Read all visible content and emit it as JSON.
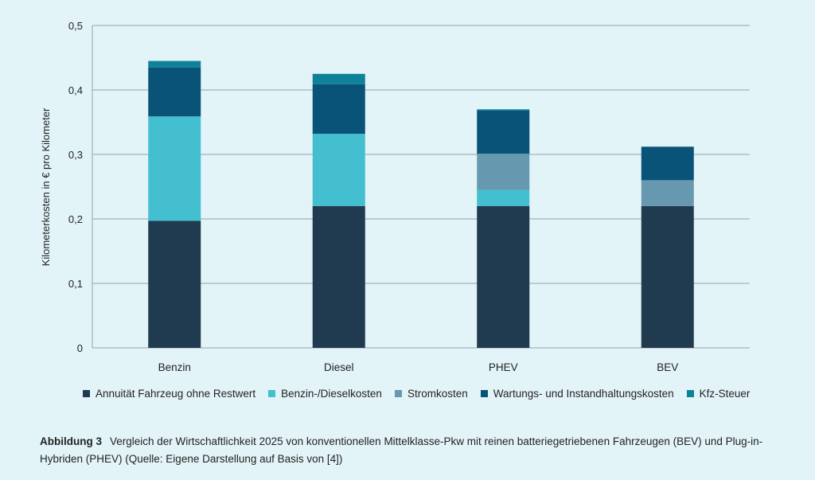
{
  "chart_data": {
    "type": "bar",
    "stacked": true,
    "categories": [
      "Benzin",
      "Diesel",
      "PHEV",
      "BEV"
    ],
    "series": [
      {
        "name": "Annuität Fahrzeug ohne Restwert",
        "color": "#203a4f",
        "values": [
          0.197,
          0.22,
          0.22,
          0.22
        ]
      },
      {
        "name": "Benzin-/Dieselkosten",
        "color": "#44bfcf",
        "values": [
          0.162,
          0.112,
          0.025,
          0
        ]
      },
      {
        "name": "Stromkosten",
        "color": "#6699b0",
        "values": [
          0,
          0,
          0.056,
          0.04
        ]
      },
      {
        "name": "Wartungs- und Instandhaltungskosten",
        "color": "#0a5378",
        "values": [
          0.076,
          0.077,
          0.067,
          0.052
        ]
      },
      {
        "name": "Kfz-Steuer",
        "color": "#0e8299",
        "values": [
          0.01,
          0.016,
          0.002,
          0
        ]
      }
    ],
    "ylabel": "Kilometerkosten in € pro Kilometer",
    "xlabel": "",
    "ylim": [
      0,
      0.5
    ],
    "yticks": [
      "0",
      "0,1",
      "0,2",
      "0,3",
      "0,4",
      "0,5"
    ],
    "grid": true,
    "legend_position": "bottom"
  },
  "caption": {
    "label": "Abbildung 3",
    "text": "Vergleich der Wirtschaftlichkeit 2025 von konventionellen Mittelklasse-Pkw mit reinen batteriegetriebenen Fahrzeugen (BEV) und Plug-in-Hybriden (PHEV)  (Quelle: Eigene Darstellung auf Basis von [4])"
  }
}
